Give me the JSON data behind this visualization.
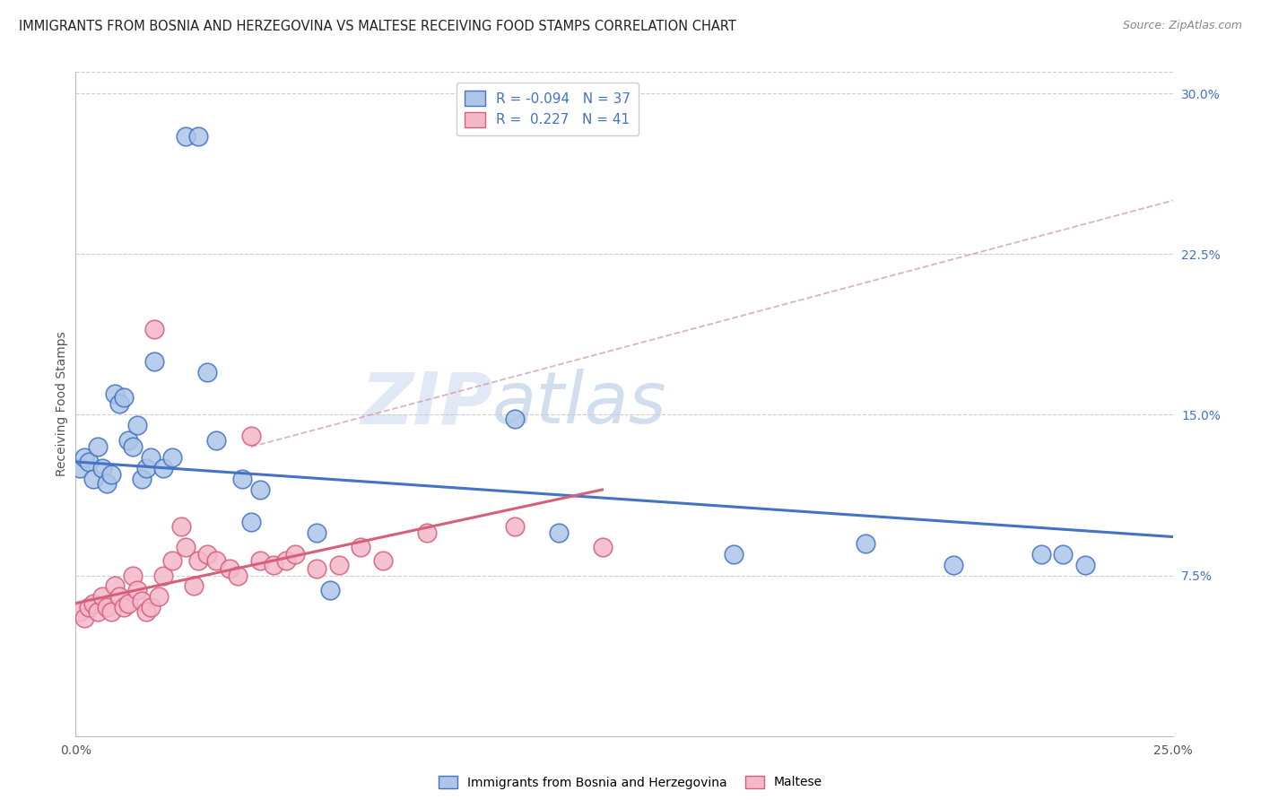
{
  "title": "IMMIGRANTS FROM BOSNIA AND HERZEGOVINA VS MALTESE RECEIVING FOOD STAMPS CORRELATION CHART",
  "source": "Source: ZipAtlas.com",
  "ylabel": "Receiving Food Stamps",
  "xlim": [
    0.0,
    0.25
  ],
  "ylim": [
    0.0,
    0.31
  ],
  "xticks": [
    0.0,
    0.05,
    0.1,
    0.15,
    0.2,
    0.25
  ],
  "xtick_labels": [
    "0.0%",
    "",
    "",
    "",
    "",
    "25.0%"
  ],
  "yticks_right": [
    0.075,
    0.15,
    0.225,
    0.3
  ],
  "ytick_labels_right": [
    "7.5%",
    "15.0%",
    "22.5%",
    "30.0%"
  ],
  "color_blue": "#adc6e8",
  "color_pink": "#f4b8cb",
  "line_blue": "#4472c4",
  "line_pink": "#d4607a",
  "line_dash_color": "#d0a0b0",
  "watermark_zip": "ZIP",
  "watermark_atlas": "atlas",
  "title_fontsize": 10.5,
  "source_fontsize": 9,
  "axis_label_fontsize": 10,
  "tick_fontsize": 10,
  "legend_r1": "R = -0.094",
  "legend_n1": "N = 37",
  "legend_r2": "R =  0.227",
  "legend_n2": "N = 41",
  "blue_x": [
    0.001,
    0.002,
    0.003,
    0.004,
    0.005,
    0.006,
    0.007,
    0.008,
    0.009,
    0.01,
    0.011,
    0.012,
    0.013,
    0.014,
    0.015,
    0.016,
    0.017,
    0.018,
    0.02,
    0.022,
    0.025,
    0.028,
    0.03,
    0.032,
    0.038,
    0.04,
    0.042,
    0.055,
    0.058,
    0.1,
    0.11,
    0.15,
    0.18,
    0.2,
    0.22,
    0.225,
    0.23
  ],
  "blue_y": [
    0.125,
    0.13,
    0.128,
    0.12,
    0.135,
    0.125,
    0.118,
    0.122,
    0.16,
    0.155,
    0.158,
    0.138,
    0.135,
    0.145,
    0.12,
    0.125,
    0.13,
    0.175,
    0.125,
    0.13,
    0.28,
    0.28,
    0.17,
    0.138,
    0.12,
    0.1,
    0.115,
    0.095,
    0.068,
    0.148,
    0.095,
    0.085,
    0.09,
    0.08,
    0.085,
    0.085,
    0.08
  ],
  "pink_x": [
    0.001,
    0.002,
    0.003,
    0.004,
    0.005,
    0.006,
    0.007,
    0.008,
    0.009,
    0.01,
    0.011,
    0.012,
    0.013,
    0.014,
    0.015,
    0.016,
    0.017,
    0.018,
    0.019,
    0.02,
    0.022,
    0.024,
    0.025,
    0.027,
    0.028,
    0.03,
    0.032,
    0.035,
    0.037,
    0.04,
    0.042,
    0.045,
    0.048,
    0.05,
    0.055,
    0.06,
    0.065,
    0.07,
    0.08,
    0.1,
    0.12
  ],
  "pink_y": [
    0.058,
    0.055,
    0.06,
    0.062,
    0.058,
    0.065,
    0.06,
    0.058,
    0.07,
    0.065,
    0.06,
    0.062,
    0.075,
    0.068,
    0.063,
    0.058,
    0.06,
    0.19,
    0.065,
    0.075,
    0.082,
    0.098,
    0.088,
    0.07,
    0.082,
    0.085,
    0.082,
    0.078,
    0.075,
    0.14,
    0.082,
    0.08,
    0.082,
    0.085,
    0.078,
    0.08,
    0.088,
    0.082,
    0.095,
    0.098,
    0.088
  ],
  "blue_line_x0": 0.0,
  "blue_line_x1": 0.25,
  "blue_line_y0": 0.128,
  "blue_line_y1": 0.093,
  "pink_line_x0": 0.0,
  "pink_line_x1": 0.12,
  "pink_line_y0": 0.062,
  "pink_line_y1": 0.115,
  "dash_line_x0": 0.04,
  "dash_line_x1": 0.25,
  "dash_line_y0": 0.135,
  "dash_line_y1": 0.25
}
